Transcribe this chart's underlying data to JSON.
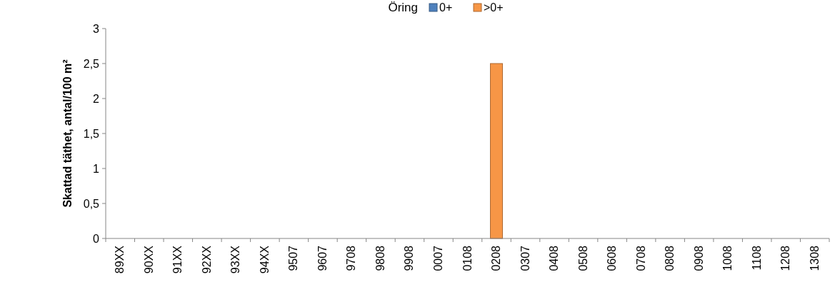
{
  "chart_data": {
    "type": "bar",
    "title": "Öring",
    "ylabel": "Skattad täthet, antal/100 m²",
    "categories": [
      "89XX",
      "90XX",
      "91XX",
      "92XX",
      "93XX",
      "94XX",
      "9507",
      "9607",
      "9708",
      "9808",
      "9908",
      "0007",
      "0108",
      "0208",
      "0307",
      "0408",
      "0508",
      "0608",
      "0708",
      "0808",
      "0908",
      "1008",
      "1108",
      "1208",
      "1308"
    ],
    "series": [
      {
        "name": "0+",
        "color": "#4f81bd",
        "values": [
          0,
          0,
          0,
          0,
          0,
          0,
          0,
          0,
          0,
          0,
          0,
          0,
          0,
          0,
          0,
          0,
          0,
          0,
          0,
          0,
          0,
          0,
          0,
          0,
          0
        ]
      },
      {
        "name": ">0+",
        "color": "#f79646",
        "values": [
          0,
          0,
          0,
          0,
          0,
          0,
          0,
          0,
          0,
          0,
          0,
          0,
          0,
          2.5,
          0,
          0,
          0,
          0,
          0,
          0,
          0,
          0,
          0,
          0,
          0
        ]
      }
    ],
    "ylim": [
      0,
      3
    ],
    "yticks": [
      0,
      {
        "value": 0.5,
        "label": "0,5"
      },
      1,
      {
        "value": 1.5,
        "label": "1,5"
      },
      2,
      {
        "value": 2.5,
        "label": "2,5"
      },
      3
    ],
    "grid": false,
    "legend": "top"
  }
}
